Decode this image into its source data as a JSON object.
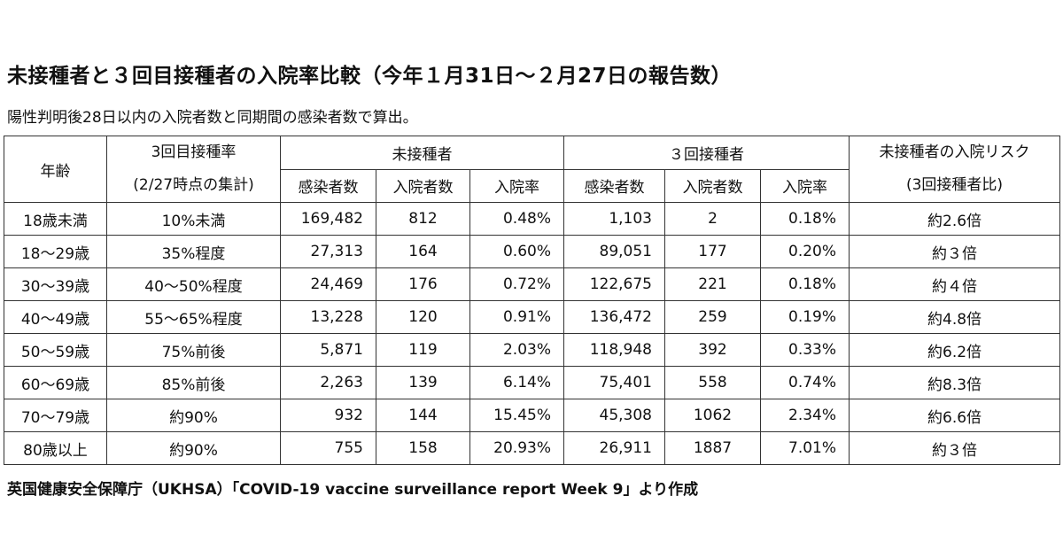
{
  "title": "未接種者と３回目接種者の入院率比較（今年１月31日～２月27日の報告数）",
  "subtitle": "陽性判明後28日以内の入院者数と同期間の感染者数で算出。",
  "headers": {
    "age": "年齢",
    "rate_line1": "3回目接種率",
    "rate_line2": "(2/27時点の集計)",
    "unvaccinated": "未接種者",
    "three_dose": "３回接種者",
    "risk_line1": "未接種者の入院リスク",
    "risk_line2": "(3回接種者比)",
    "cases": "感染者数",
    "hosp": "入院者数",
    "hosp_rate": "入院率"
  },
  "rows": [
    {
      "age": "18歳未満",
      "rate": "10%未満",
      "u_cases": "169,482",
      "u_hosp": "812",
      "u_rate": "0.48%",
      "v_cases": "1,103",
      "v_hosp": "2",
      "v_rate": "0.18%",
      "risk": "約2.6倍"
    },
    {
      "age": "18～29歳",
      "rate": "35%程度",
      "u_cases": "27,313",
      "u_hosp": "164",
      "u_rate": "0.60%",
      "v_cases": "89,051",
      "v_hosp": "177",
      "v_rate": "0.20%",
      "risk": "約３倍"
    },
    {
      "age": "30～39歳",
      "rate": "40～50%程度",
      "u_cases": "24,469",
      "u_hosp": "176",
      "u_rate": "0.72%",
      "v_cases": "122,675",
      "v_hosp": "221",
      "v_rate": "0.18%",
      "risk": "約４倍"
    },
    {
      "age": "40～49歳",
      "rate": "55～65%程度",
      "u_cases": "13,228",
      "u_hosp": "120",
      "u_rate": "0.91%",
      "v_cases": "136,472",
      "v_hosp": "259",
      "v_rate": "0.19%",
      "risk": "約4.8倍"
    },
    {
      "age": "50～59歳",
      "rate": "75%前後",
      "u_cases": "5,871",
      "u_hosp": "119",
      "u_rate": "2.03%",
      "v_cases": "118,948",
      "v_hosp": "392",
      "v_rate": "0.33%",
      "risk": "約6.2倍"
    },
    {
      "age": "60～69歳",
      "rate": "85%前後",
      "u_cases": "2,263",
      "u_hosp": "139",
      "u_rate": "6.14%",
      "v_cases": "75,401",
      "v_hosp": "558",
      "v_rate": "0.74%",
      "risk": "約8.3倍"
    },
    {
      "age": "70～79歳",
      "rate": "約90%",
      "u_cases": "932",
      "u_hosp": "144",
      "u_rate": "15.45%",
      "v_cases": "45,308",
      "v_hosp": "1062",
      "v_rate": "2.34%",
      "risk": "約6.6倍"
    },
    {
      "age": "80歳以上",
      "rate": "約90%",
      "u_cases": "755",
      "u_hosp": "158",
      "u_rate": "20.93%",
      "v_cases": "26,911",
      "v_hosp": "1887",
      "v_rate": "7.01%",
      "risk": "約３倍"
    }
  ],
  "source": "英国健康安全保障庁（UKHSA）「COVID-19 vaccine surveillance report Week 9」より作成"
}
